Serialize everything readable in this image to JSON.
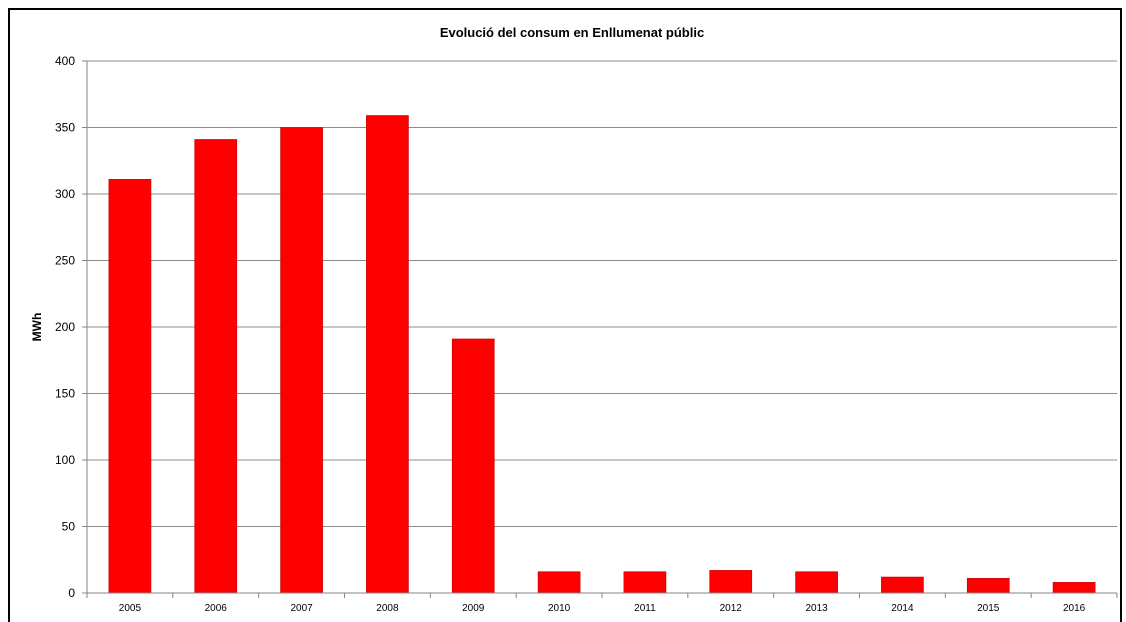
{
  "chart_data": {
    "type": "bar",
    "title": "Evolució del consum  en Enllumenat públic",
    "xlabel": "",
    "ylabel": "MWh",
    "categories": [
      "2005",
      "2006",
      "2007",
      "2008",
      "2009",
      "2010",
      "2011",
      "2012",
      "2013",
      "2014",
      "2015",
      "2016"
    ],
    "values": [
      311,
      341,
      350,
      359,
      191,
      16,
      16,
      17,
      16,
      12,
      11,
      8
    ],
    "ylim": [
      0,
      400
    ],
    "yticks": [
      "0",
      "50",
      "100",
      "150",
      "200",
      "250",
      "300",
      "350",
      "400"
    ],
    "grid": true,
    "legend": "none",
    "colors": {
      "bar": "#ff0000",
      "bar_edge": "#c00000",
      "grid": "#8c8c8c",
      "axis": "#868686"
    }
  }
}
